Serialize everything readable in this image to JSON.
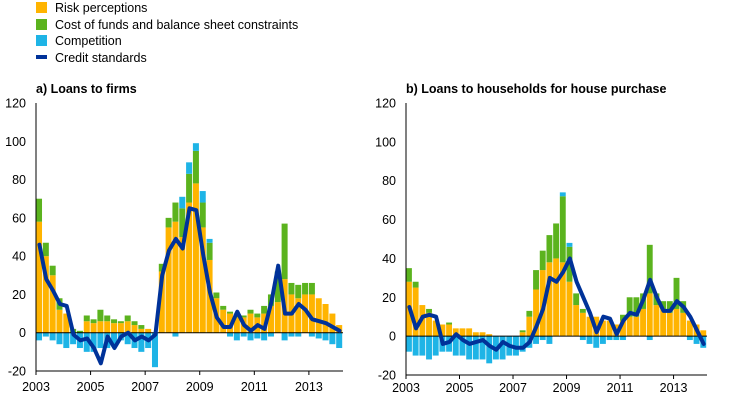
{
  "colors": {
    "risk": "#FFB400",
    "funds": "#5BB31E",
    "competition": "#1EB4E6",
    "standards": "#003299",
    "grid": "#000000"
  },
  "legend": [
    {
      "label": "Risk perceptions",
      "color": "#FFB400",
      "kind": "box"
    },
    {
      "label": "Cost of funds and balance sheet constraints",
      "color": "#5BB31E",
      "kind": "box"
    },
    {
      "label": "Competition",
      "color": "#1EB4E6",
      "kind": "box"
    },
    {
      "label": "Credit standards",
      "color": "#003299",
      "kind": "line"
    }
  ],
  "chart_data": [
    {
      "type": "bar",
      "title": "a) Loans to firms",
      "ylim": [
        -20,
        120
      ],
      "yticks": [
        "120",
        "100",
        "80",
        "60",
        "40",
        "20",
        "0",
        "-20"
      ],
      "xticks": [
        "2003",
        "2005",
        "2007",
        "2009",
        "2011",
        "2013"
      ],
      "x": [
        "2003Q1",
        "2003Q2",
        "2003Q3",
        "2003Q4",
        "2004Q1",
        "2004Q2",
        "2004Q3",
        "2004Q4",
        "2005Q1",
        "2005Q2",
        "2005Q3",
        "2005Q4",
        "2006Q1",
        "2006Q2",
        "2006Q3",
        "2006Q4",
        "2007Q1",
        "2007Q2",
        "2007Q3",
        "2007Q4",
        "2008Q1",
        "2008Q2",
        "2008Q3",
        "2008Q4",
        "2009Q1",
        "2009Q2",
        "2009Q3",
        "2009Q4",
        "2010Q1",
        "2010Q2",
        "2010Q3",
        "2010Q4",
        "2011Q1",
        "2011Q2",
        "2011Q3",
        "2011Q4",
        "2012Q1",
        "2012Q2",
        "2012Q3",
        "2012Q4",
        "2013Q1",
        "2013Q2",
        "2013Q3",
        "2013Q4",
        "2014Q1"
      ],
      "series": [
        {
          "name": "Risk perceptions",
          "kind": "bar",
          "values": [
            58,
            40,
            30,
            12,
            10,
            0,
            0,
            6,
            5,
            6,
            6,
            5,
            5,
            6,
            4,
            2,
            2,
            0,
            32,
            55,
            58,
            50,
            68,
            78,
            55,
            38,
            18,
            12,
            10,
            8,
            8,
            10,
            8,
            10,
            14,
            16,
            28,
            20,
            18,
            20,
            20,
            18,
            15,
            10,
            4
          ]
        },
        {
          "name": "Cost of funds and balance sheet constraints",
          "kind": "bar",
          "values": [
            12,
            7,
            5,
            6,
            0,
            2,
            1,
            3,
            2,
            6,
            3,
            2,
            1,
            3,
            2,
            2,
            0,
            0,
            4,
            5,
            10,
            15,
            15,
            17,
            13,
            9,
            3,
            2,
            1,
            2,
            1,
            2,
            2,
            4,
            6,
            16,
            29,
            6,
            7,
            6,
            6,
            0,
            0,
            0,
            0
          ]
        },
        {
          "name": "Competition",
          "kind": "bar",
          "values": [
            -4,
            -2,
            -4,
            -6,
            -8,
            -6,
            -8,
            -10,
            -10,
            -8,
            -8,
            -6,
            -4,
            -6,
            -8,
            -10,
            -8,
            -18,
            0,
            0,
            -2,
            6,
            6,
            4,
            6,
            2,
            0,
            0,
            -2,
            -4,
            -2,
            -4,
            -3,
            -4,
            -2,
            0,
            -4,
            -2,
            -2,
            0,
            -2,
            -3,
            -4,
            -6,
            -8
          ]
        },
        {
          "name": "Credit standards",
          "kind": "line",
          "values": [
            46,
            28,
            22,
            15,
            14,
            -1,
            -4,
            -3,
            -8,
            -16,
            -2,
            -8,
            -2,
            0,
            -4,
            -2,
            -4,
            -1,
            30,
            43,
            49,
            44,
            65,
            64,
            41,
            21,
            8,
            3,
            3,
            11,
            4,
            1,
            4,
            2,
            16,
            35,
            10,
            10,
            15,
            12,
            7,
            6,
            5,
            3,
            1
          ]
        }
      ]
    },
    {
      "type": "bar",
      "title": "b) Loans to households for house purchase",
      "ylim": [
        -20,
        120
      ],
      "yticks": [
        "120",
        "100",
        "80",
        "60",
        "40",
        "20",
        "0",
        "-20"
      ],
      "xticks": [
        "2003",
        "2005",
        "2007",
        "2009",
        "2011",
        "2013"
      ],
      "x": [
        "2003Q1",
        "2003Q2",
        "2003Q3",
        "2003Q4",
        "2004Q1",
        "2004Q2",
        "2004Q3",
        "2004Q4",
        "2005Q1",
        "2005Q2",
        "2005Q3",
        "2005Q4",
        "2006Q1",
        "2006Q2",
        "2006Q3",
        "2006Q4",
        "2007Q1",
        "2007Q2",
        "2007Q3",
        "2007Q4",
        "2008Q1",
        "2008Q2",
        "2008Q3",
        "2008Q4",
        "2009Q1",
        "2009Q2",
        "2009Q3",
        "2009Q4",
        "2010Q1",
        "2010Q2",
        "2010Q3",
        "2010Q4",
        "2011Q1",
        "2011Q2",
        "2011Q3",
        "2011Q4",
        "2012Q1",
        "2012Q2",
        "2012Q3",
        "2012Q4",
        "2013Q1",
        "2013Q2",
        "2013Q3",
        "2013Q4",
        "2014Q1"
      ],
      "series": [
        {
          "name": "Risk perceptions",
          "kind": "bar",
          "values": [
            28,
            25,
            16,
            12,
            8,
            6,
            6,
            4,
            4,
            4,
            2,
            2,
            1,
            0,
            0,
            0,
            0,
            2,
            10,
            24,
            34,
            38,
            40,
            38,
            28,
            16,
            12,
            10,
            10,
            8,
            8,
            6,
            8,
            10,
            10,
            14,
            22,
            16,
            14,
            12,
            14,
            12,
            8,
            6,
            3
          ]
        },
        {
          "name": "Cost of funds and balance sheet constraints",
          "kind": "bar",
          "values": [
            7,
            3,
            0,
            2,
            0,
            0,
            1,
            0,
            0,
            0,
            0,
            0,
            0,
            0,
            0,
            0,
            0,
            1,
            3,
            10,
            10,
            14,
            18,
            34,
            18,
            6,
            2,
            0,
            0,
            0,
            0,
            0,
            3,
            10,
            10,
            8,
            25,
            6,
            4,
            6,
            16,
            6,
            0,
            0,
            0
          ]
        },
        {
          "name": "Competition",
          "kind": "bar",
          "values": [
            -8,
            -10,
            -10,
            -12,
            -10,
            -8,
            -8,
            -10,
            -10,
            -12,
            -12,
            -12,
            -14,
            -12,
            -12,
            -10,
            -10,
            -8,
            -6,
            -4,
            -2,
            -4,
            0,
            2,
            2,
            0,
            -2,
            -4,
            -6,
            -4,
            -2,
            -2,
            -2,
            0,
            0,
            0,
            -2,
            0,
            0,
            0,
            0,
            0,
            -2,
            -4,
            -6
          ]
        },
        {
          "name": "Credit standards",
          "kind": "line",
          "values": [
            15,
            4,
            10,
            11,
            10,
            -4,
            -3,
            1,
            -2,
            -4,
            -3,
            -2,
            -5,
            -7,
            -3,
            -5,
            -6,
            -6,
            -3,
            5,
            14,
            30,
            28,
            33,
            40,
            28,
            20,
            12,
            2,
            10,
            9,
            1,
            8,
            12,
            11,
            19,
            29,
            20,
            13,
            13,
            18,
            15,
            10,
            3,
            -4
          ]
        }
      ]
    }
  ]
}
